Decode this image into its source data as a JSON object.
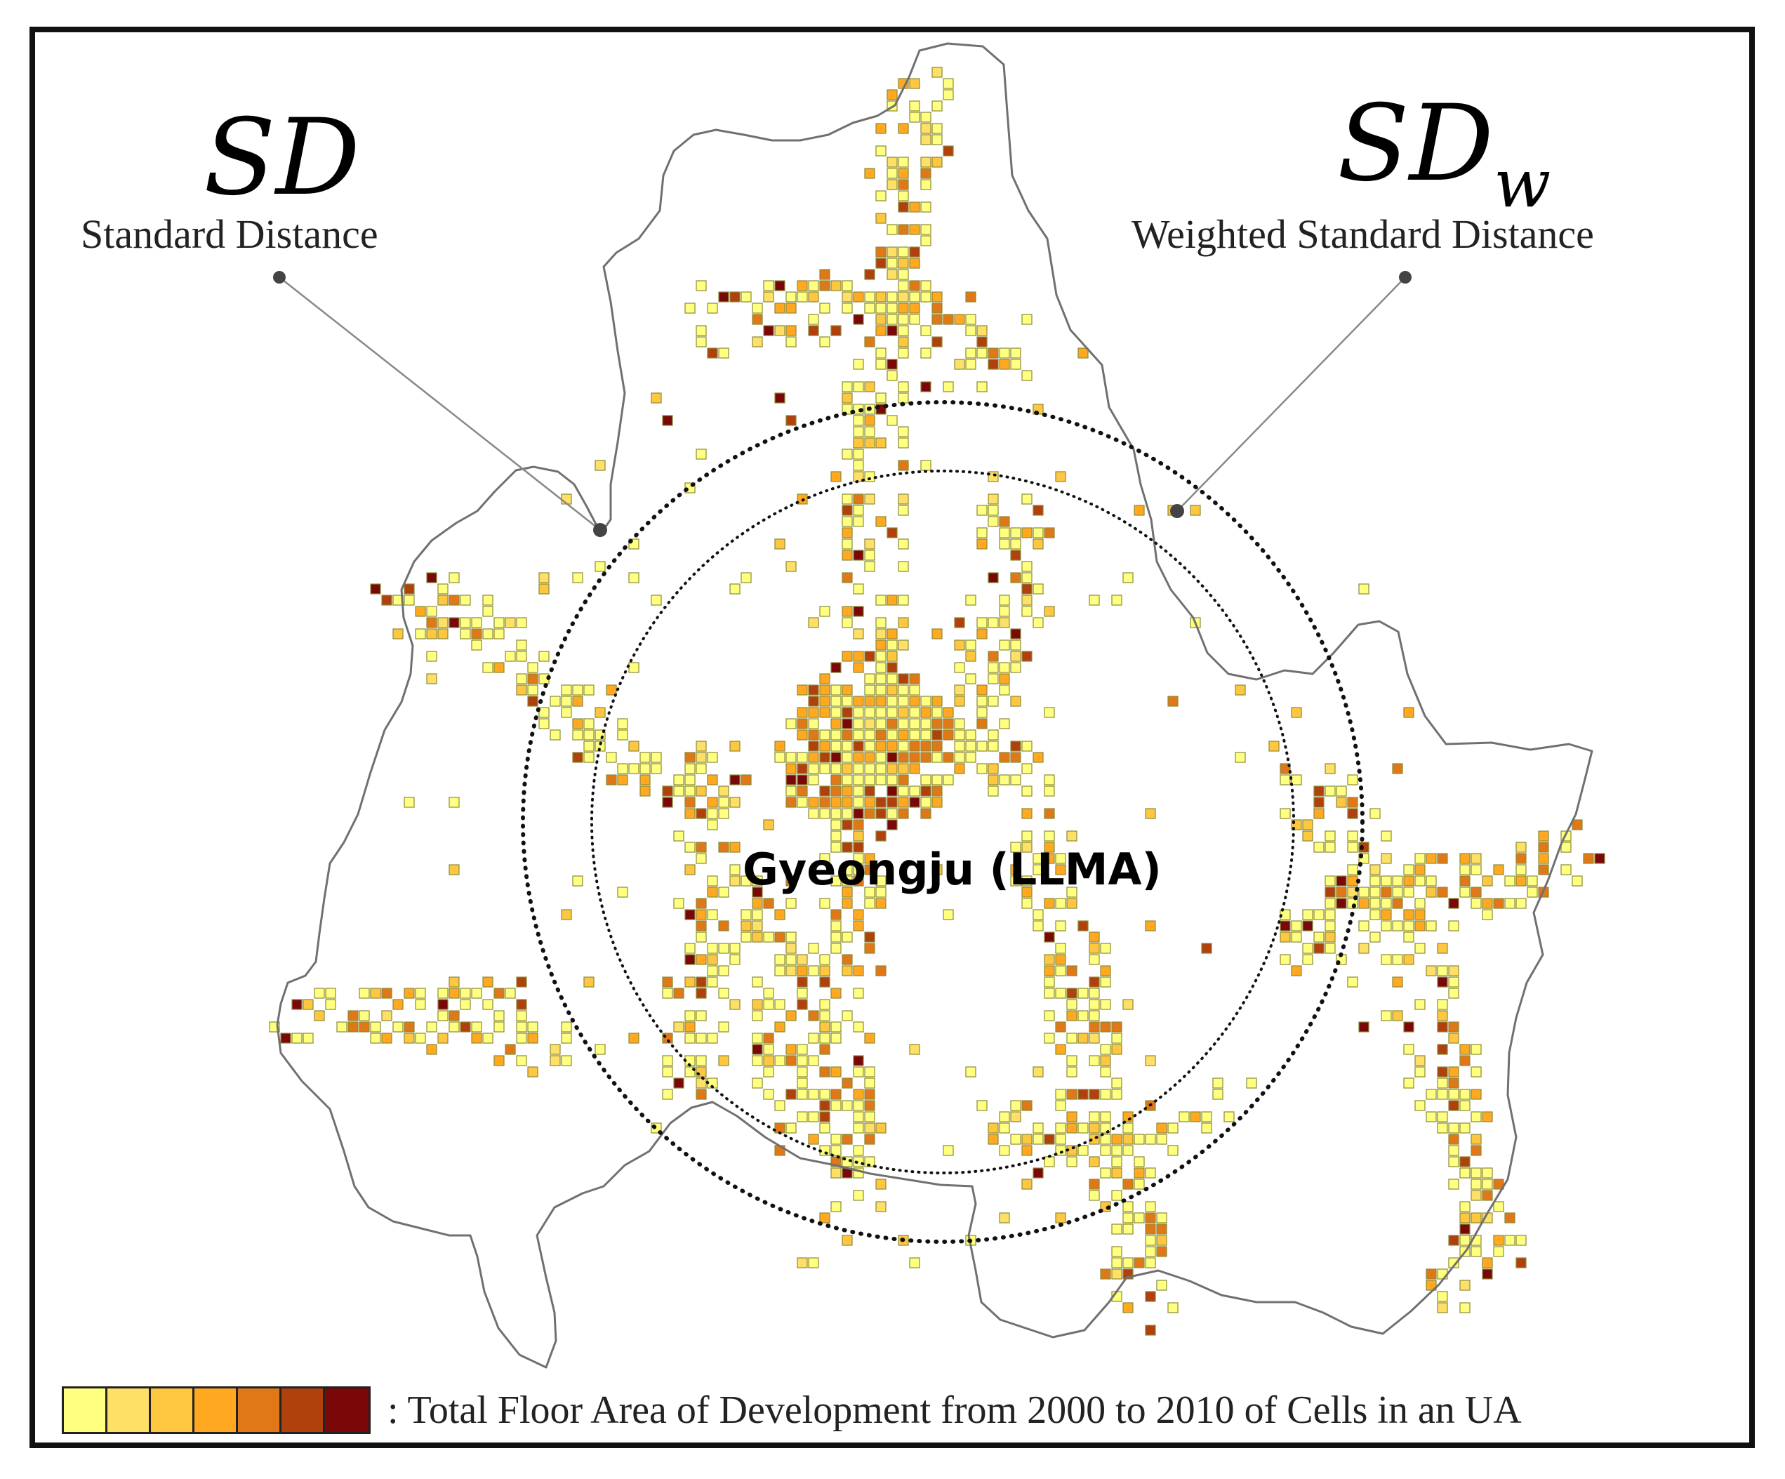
{
  "labels": {
    "sd_symbol": "SD",
    "sd_caption": "Standard Distance",
    "sdw_symbol": "SD",
    "sdw_subscript": "w",
    "sdw_caption": "Weighted Standard Distance",
    "city": "Gyeongju (LLMA)"
  },
  "legend": {
    "text": ": Total Floor Area of Development from 2000 to 2010 of Cells in an UA",
    "colors": [
      "#ffff80",
      "#ffe066",
      "#ffc640",
      "#ffa820",
      "#e07818",
      "#b0400c",
      "#7a0808"
    ]
  },
  "colors": {
    "boundary": "#707070",
    "circle": "#111111",
    "cell_stroke": "#8a8a3a"
  }
}
